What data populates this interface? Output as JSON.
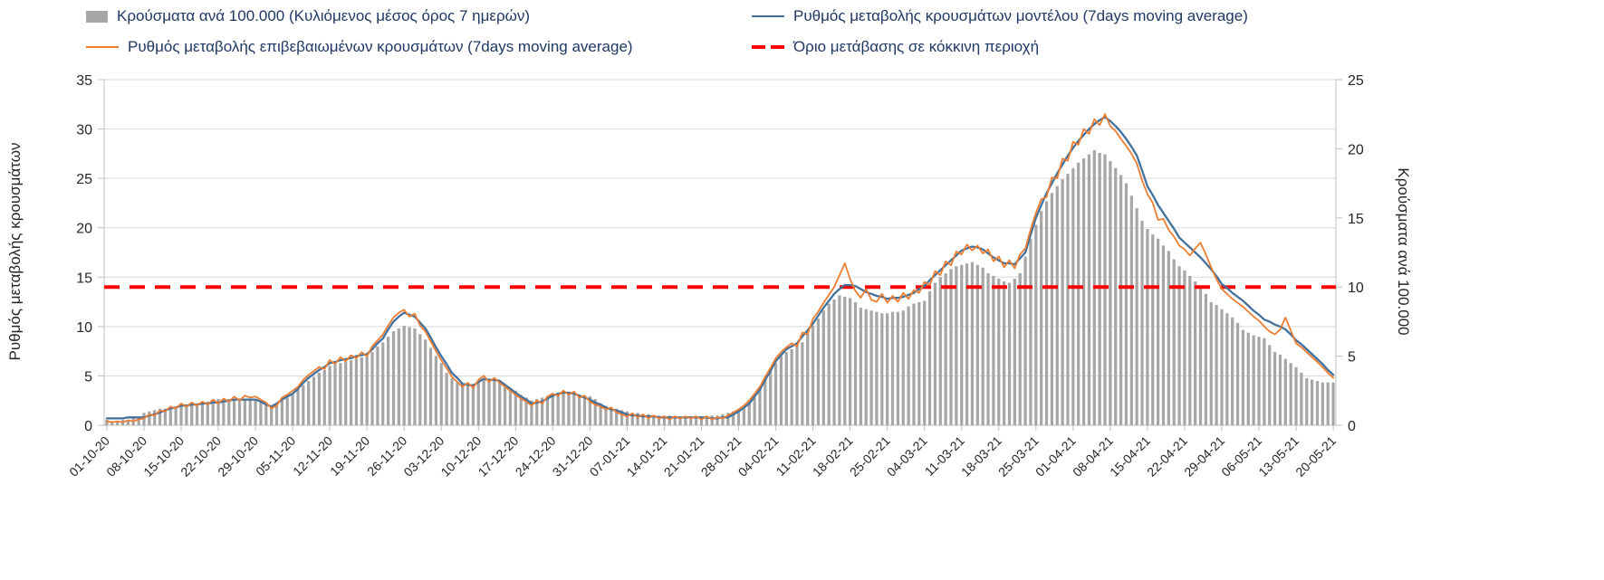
{
  "legend": {
    "bars_label": "Κρούσματα ανά 100.000 (Κυλιόμενος μέσος όρος 7 ημερών)",
    "model_label": "Ρυθμός μεταβολής κρουσμάτων μοντέλου (7days moving average)",
    "confirmed_label": "Ρυθμός μεταβολής επιβεβαιωμένων κρουσμάτων (7days moving average)",
    "threshold_label": "Όριο μετάβασης σε κόκκινη περιοχή"
  },
  "axes": {
    "left_title": "Ρυθμός μεταβολής κρουσμάτων",
    "right_title": "Κρούσματα ανά 100.000",
    "left_ticks": [
      0,
      5,
      10,
      15,
      20,
      25,
      30,
      35
    ],
    "right_ticks": [
      0,
      5,
      10,
      15,
      20,
      25
    ]
  },
  "colors": {
    "bars": "#a6a6a6",
    "model_line": "#41719c",
    "confirmed_line": "#ed7d31",
    "threshold": "#ff0000",
    "grid": "#d9d9d9",
    "axis": "#bfbfbf",
    "legend_text": "#1f3864",
    "tick_text": "#262626"
  },
  "chart_data": {
    "type": "combo bar + line",
    "x_is_daily": true,
    "n_points": 232,
    "x_start": "01-10-20",
    "x_end": "20-05-21",
    "x_tick_every": 7,
    "x_tick_labels": [
      "01-10-20",
      "08-10-20",
      "15-10-20",
      "22-10-20",
      "29-10-20",
      "05-11-20",
      "12-11-20",
      "19-11-20",
      "26-11-20",
      "03-12-20",
      "10-12-20",
      "17-12-20",
      "24-12-20",
      "31-12-20",
      "07-01-21",
      "14-01-21",
      "21-01-21",
      "28-01-21",
      "04-02-21",
      "11-02-21",
      "18-02-21",
      "25-02-21",
      "04-03-21",
      "11-03-21",
      "18-03-21",
      "25-03-21",
      "01-04-21",
      "08-04-21",
      "15-04-21",
      "22-04-21",
      "29-04-21",
      "06-05-21",
      "13-05-21",
      "20-05-21"
    ],
    "left_ylim": [
      0,
      35
    ],
    "right_ylim": [
      0,
      25
    ],
    "grid": "horizontal",
    "legend_position": "top",
    "threshold": {
      "label": "Όριο μετάβασης σε κόκκινη περιοχή",
      "axis": "left",
      "value_left_axis": 14,
      "value_right_axis": 10
    },
    "series": [
      {
        "name": "Κρούσματα ανά 100.000 (Κυλιόμενος μέσος όρος 7 ημερών)",
        "type": "bar",
        "axis": "right",
        "values": [
          0.4,
          0.3,
          0.3,
          0.4,
          0.3,
          0.5,
          0.6,
          0.9,
          1.0,
          1.1,
          1.2,
          1.2,
          1.3,
          1.3,
          1.4,
          1.4,
          1.5,
          1.5,
          1.6,
          1.7,
          1.8,
          1.9,
          1.9,
          1.9,
          1.9,
          1.9,
          1.9,
          1.9,
          1.8,
          1.7,
          1.5,
          1.4,
          1.6,
          1.8,
          2.0,
          2.3,
          2.6,
          2.9,
          3.2,
          3.5,
          3.8,
          4.0,
          4.3,
          4.4,
          4.5,
          4.6,
          4.7,
          4.8,
          4.9,
          5.0,
          5.3,
          5.7,
          6.0,
          6.4,
          6.8,
          7.0,
          7.2,
          7.1,
          7.0,
          6.6,
          6.2,
          5.6,
          5.0,
          4.5,
          3.8,
          3.4,
          3.1,
          3.0,
          2.9,
          3.0,
          3.2,
          3.3,
          3.3,
          3.3,
          3.1,
          2.9,
          2.7,
          2.5,
          2.2,
          2.0,
          1.8,
          1.9,
          2.0,
          2.1,
          2.2,
          2.3,
          2.3,
          2.3,
          2.2,
          2.2,
          2.1,
          2.1,
          1.9,
          1.6,
          1.4,
          1.3,
          1.2,
          1.1,
          1.0,
          0.9,
          0.9,
          0.8,
          0.8,
          0.7,
          0.7,
          0.7,
          0.7,
          0.6,
          0.6,
          0.6,
          0.6,
          0.6,
          0.6,
          0.6,
          0.7,
          0.7,
          0.8,
          0.9,
          1.0,
          1.1,
          1.4,
          1.7,
          2.0,
          2.8,
          3.4,
          4.0,
          4.5,
          5.0,
          5.3,
          5.5,
          5.8,
          6.0,
          6.6,
          7.2,
          7.7,
          8.3,
          8.8,
          9.1,
          9.4,
          9.3,
          9.2,
          8.9,
          8.5,
          8.4,
          8.3,
          8.2,
          8.1,
          8.1,
          8.2,
          8.2,
          8.3,
          8.6,
          8.8,
          8.9,
          9.0,
          9.7,
          10.3,
          10.7,
          11.0,
          11.3,
          11.5,
          11.6,
          11.7,
          11.8,
          11.6,
          11.4,
          11.0,
          10.8,
          10.6,
          10.4,
          10.3,
          10.6,
          11.0,
          12.2,
          13.5,
          14.5,
          15.5,
          16.2,
          16.8,
          17.3,
          17.8,
          18.2,
          18.6,
          19.0,
          19.3,
          19.6,
          19.9,
          19.7,
          19.6,
          19.1,
          18.6,
          18.1,
          17.5,
          16.6,
          15.7,
          14.8,
          14.2,
          13.8,
          13.5,
          13.0,
          12.6,
          12.0,
          11.5,
          11.2,
          10.8,
          10.4,
          10.1,
          9.5,
          8.9,
          8.7,
          8.4,
          8.1,
          7.8,
          7.4,
          6.9,
          6.7,
          6.5,
          6.4,
          6.3,
          5.8,
          5.3,
          5.1,
          4.8,
          4.5,
          4.2,
          3.8,
          3.4,
          3.3,
          3.2,
          3.1,
          3.1,
          3.1
        ]
      },
      {
        "name": "Ρυθμός μεταβολής κρουσμάτων μοντέλου (7days moving average)",
        "type": "line",
        "axis": "left",
        "values": [
          0.7,
          0.7,
          0.7,
          0.7,
          0.8,
          0.8,
          0.8,
          0.8,
          1.0,
          1.1,
          1.3,
          1.5,
          1.7,
          1.8,
          2.0,
          2.0,
          2.1,
          2.1,
          2.2,
          2.2,
          2.3,
          2.3,
          2.4,
          2.5,
          2.6,
          2.6,
          2.6,
          2.6,
          2.6,
          2.4,
          2.1,
          1.9,
          2.2,
          2.6,
          2.9,
          3.2,
          3.7,
          4.3,
          4.8,
          5.2,
          5.6,
          5.9,
          6.3,
          6.4,
          6.6,
          6.7,
          6.8,
          7.0,
          7.1,
          7.2,
          7.7,
          8.3,
          8.8,
          9.7,
          10.5,
          11.0,
          11.4,
          11.2,
          11.0,
          10.4,
          9.8,
          8.9,
          7.9,
          7.0,
          6.2,
          5.3,
          4.8,
          4.2,
          4.1,
          4.0,
          4.4,
          4.7,
          4.6,
          4.6,
          4.5,
          4.1,
          3.7,
          3.3,
          2.9,
          2.6,
          2.2,
          2.3,
          2.4,
          2.7,
          3.0,
          3.2,
          3.3,
          3.3,
          3.2,
          3.0,
          2.8,
          2.6,
          2.3,
          2.1,
          1.8,
          1.6,
          1.5,
          1.3,
          1.1,
          1.0,
          1.0,
          0.9,
          0.9,
          0.9,
          0.8,
          0.8,
          0.8,
          0.8,
          0.8,
          0.8,
          0.8,
          0.8,
          0.8,
          0.8,
          0.7,
          0.7,
          0.8,
          0.8,
          1.1,
          1.4,
          1.8,
          2.2,
          2.9,
          3.6,
          4.6,
          5.5,
          6.5,
          7.1,
          7.7,
          8.0,
          8.3,
          9.0,
          9.6,
          10.3,
          11.1,
          11.9,
          12.6,
          13.3,
          13.8,
          14.2,
          14.2,
          14.1,
          13.8,
          13.5,
          13.3,
          13.1,
          13.0,
          12.8,
          12.9,
          12.9,
          13.0,
          13.2,
          13.4,
          13.8,
          14.1,
          14.7,
          15.2,
          15.7,
          16.2,
          16.7,
          17.2,
          17.7,
          17.9,
          18.1,
          18.0,
          17.8,
          17.4,
          17.0,
          16.7,
          16.4,
          16.4,
          16.3,
          16.9,
          17.5,
          19.3,
          21.0,
          22.3,
          23.5,
          24.5,
          25.5,
          26.4,
          27.3,
          28.1,
          28.8,
          29.4,
          30.0,
          30.5,
          30.9,
          31.2,
          30.8,
          30.3,
          29.7,
          29.0,
          28.2,
          27.3,
          25.8,
          24.2,
          23.3,
          22.3,
          21.5,
          20.7,
          19.9,
          19.0,
          18.5,
          18.0,
          17.5,
          17.0,
          16.4,
          15.8,
          15.1,
          14.3,
          13.9,
          13.4,
          13.0,
          12.6,
          12.1,
          11.6,
          11.2,
          10.7,
          10.5,
          10.2,
          10.0,
          9.7,
          9.2,
          8.6,
          8.2,
          7.7,
          7.2,
          6.7,
          6.2,
          5.6,
          5.1
        ]
      },
      {
        "name": "Ρυθμός μεταβολής επιβεβαιωμένων κρουσμάτων (7days moving average)",
        "type": "line",
        "axis": "left",
        "values": [
          0.4,
          0.3,
          0.4,
          0.3,
          0.5,
          0.4,
          0.6,
          0.7,
          1.1,
          1.0,
          1.5,
          1.4,
          1.9,
          1.7,
          2.2,
          1.9,
          2.3,
          2.0,
          2.4,
          2.1,
          2.6,
          2.2,
          2.7,
          2.4,
          2.9,
          2.5,
          3.0,
          2.8,
          2.9,
          2.6,
          2.3,
          1.7,
          2.0,
          2.8,
          3.1,
          3.5,
          3.9,
          4.6,
          5.1,
          5.5,
          5.9,
          5.7,
          6.6,
          6.2,
          6.9,
          6.5,
          7.1,
          6.8,
          7.4,
          7.0,
          8.0,
          8.6,
          9.2,
          10.1,
          10.9,
          11.4,
          11.7,
          11.0,
          11.3,
          10.1,
          9.5,
          8.5,
          7.5,
          6.6,
          5.8,
          4.9,
          4.4,
          3.9,
          4.3,
          3.8,
          4.6,
          5.0,
          4.4,
          4.8,
          4.3,
          3.9,
          3.5,
          3.1,
          2.7,
          2.4,
          2.0,
          2.5,
          2.2,
          2.9,
          3.2,
          3.0,
          3.5,
          3.1,
          3.4,
          2.8,
          3.0,
          2.4,
          2.1,
          1.9,
          1.6,
          1.8,
          1.3,
          1.1,
          0.9,
          1.2,
          0.8,
          1.1,
          0.7,
          1.0,
          0.7,
          0.9,
          0.6,
          0.9,
          0.7,
          0.9,
          0.7,
          0.9,
          0.6,
          0.9,
          0.6,
          0.8,
          0.7,
          1.0,
          1.3,
          1.6,
          2.0,
          2.5,
          3.2,
          3.9,
          4.9,
          5.8,
          6.8,
          7.4,
          7.9,
          8.3,
          8.0,
          9.4,
          9.2,
          10.8,
          11.5,
          12.4,
          13.2,
          14.0,
          15.2,
          16.4,
          14.8,
          13.6,
          12.9,
          13.8,
          12.7,
          12.5,
          13.3,
          12.4,
          13.1,
          12.5,
          13.4,
          12.8,
          13.7,
          13.4,
          14.5,
          14.2,
          15.6,
          15.2,
          16.6,
          16.2,
          17.6,
          17.3,
          18.3,
          17.7,
          18.2,
          17.4,
          17.8,
          16.6,
          17.1,
          16.0,
          16.7,
          15.9,
          17.3,
          17.9,
          19.8,
          21.5,
          22.9,
          23.1,
          25.1,
          25.0,
          27.0,
          26.8,
          28.7,
          28.4,
          30.0,
          29.5,
          31.0,
          30.4,
          31.5,
          30.3,
          29.8,
          29.0,
          28.3,
          27.5,
          26.5,
          24.8,
          23.4,
          22.5,
          20.8,
          20.9,
          19.8,
          19.1,
          18.2,
          17.8,
          17.2,
          17.9,
          18.5,
          17.3,
          16.0,
          14.8,
          13.8,
          13.3,
          12.8,
          12.4,
          12.0,
          11.5,
          11.0,
          10.6,
          10.0,
          9.5,
          9.2,
          9.7,
          10.9,
          9.6,
          8.3,
          7.9,
          7.4,
          6.9,
          6.4,
          5.9,
          5.3,
          4.8
        ]
      }
    ]
  }
}
